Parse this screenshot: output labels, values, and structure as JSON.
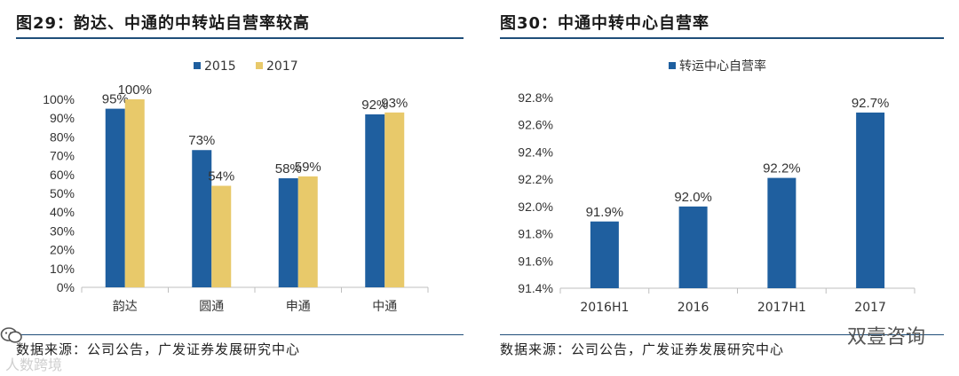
{
  "left": {
    "title": "图29：韵达、中通的中转站自营率较高",
    "source": "数据来源：公司公告，广发证券发展研究中心"
  },
  "right": {
    "title": "图30：中通中转中心自营率",
    "source": "数据来源：公司公告，广发证券发展研究中心"
  },
  "watermark": {
    "brand": "双壹咨询",
    "corner": "人数跨境"
  },
  "icons": {
    "wechat": "wechat-icon"
  },
  "chart_data": [
    {
      "type": "bar",
      "title": "图29：韵达、中通的中转站自营率较高",
      "categories": [
        "韵达",
        "圆通",
        "申通",
        "中通"
      ],
      "series": [
        {
          "name": "2015",
          "color": "#1f5f9f",
          "values": [
            95,
            73,
            58,
            92
          ],
          "labels": [
            "95%",
            "73%",
            "58%",
            "92%"
          ]
        },
        {
          "name": "2017",
          "color": "#e8c96a",
          "values": [
            100,
            54,
            59,
            93
          ],
          "labels": [
            "100%",
            "54%",
            "59%",
            "93%"
          ]
        }
      ],
      "ylim": [
        0,
        100
      ],
      "yticks": [
        "0%",
        "10%",
        "20%",
        "30%",
        "40%",
        "50%",
        "60%",
        "70%",
        "80%",
        "90%",
        "100%"
      ],
      "grid": false,
      "legend": "top-center"
    },
    {
      "type": "bar",
      "title": "图30：中通中转中心自营率",
      "categories": [
        "2016H1",
        "2016",
        "2017H1",
        "2017"
      ],
      "series": [
        {
          "name": "转运中心自营率",
          "color": "#1f5f9f",
          "values": [
            91.89,
            92.0,
            92.21,
            92.69
          ],
          "labels": [
            "91.9%",
            "92.0%",
            "92.2%",
            "92.7%"
          ]
        }
      ],
      "ylim": [
        91.4,
        92.8
      ],
      "yticks": [
        "91.4%",
        "91.6%",
        "91.8%",
        "92.0%",
        "92.2%",
        "92.4%",
        "92.6%",
        "92.8%"
      ],
      "grid": false,
      "legend": "top-left"
    }
  ]
}
